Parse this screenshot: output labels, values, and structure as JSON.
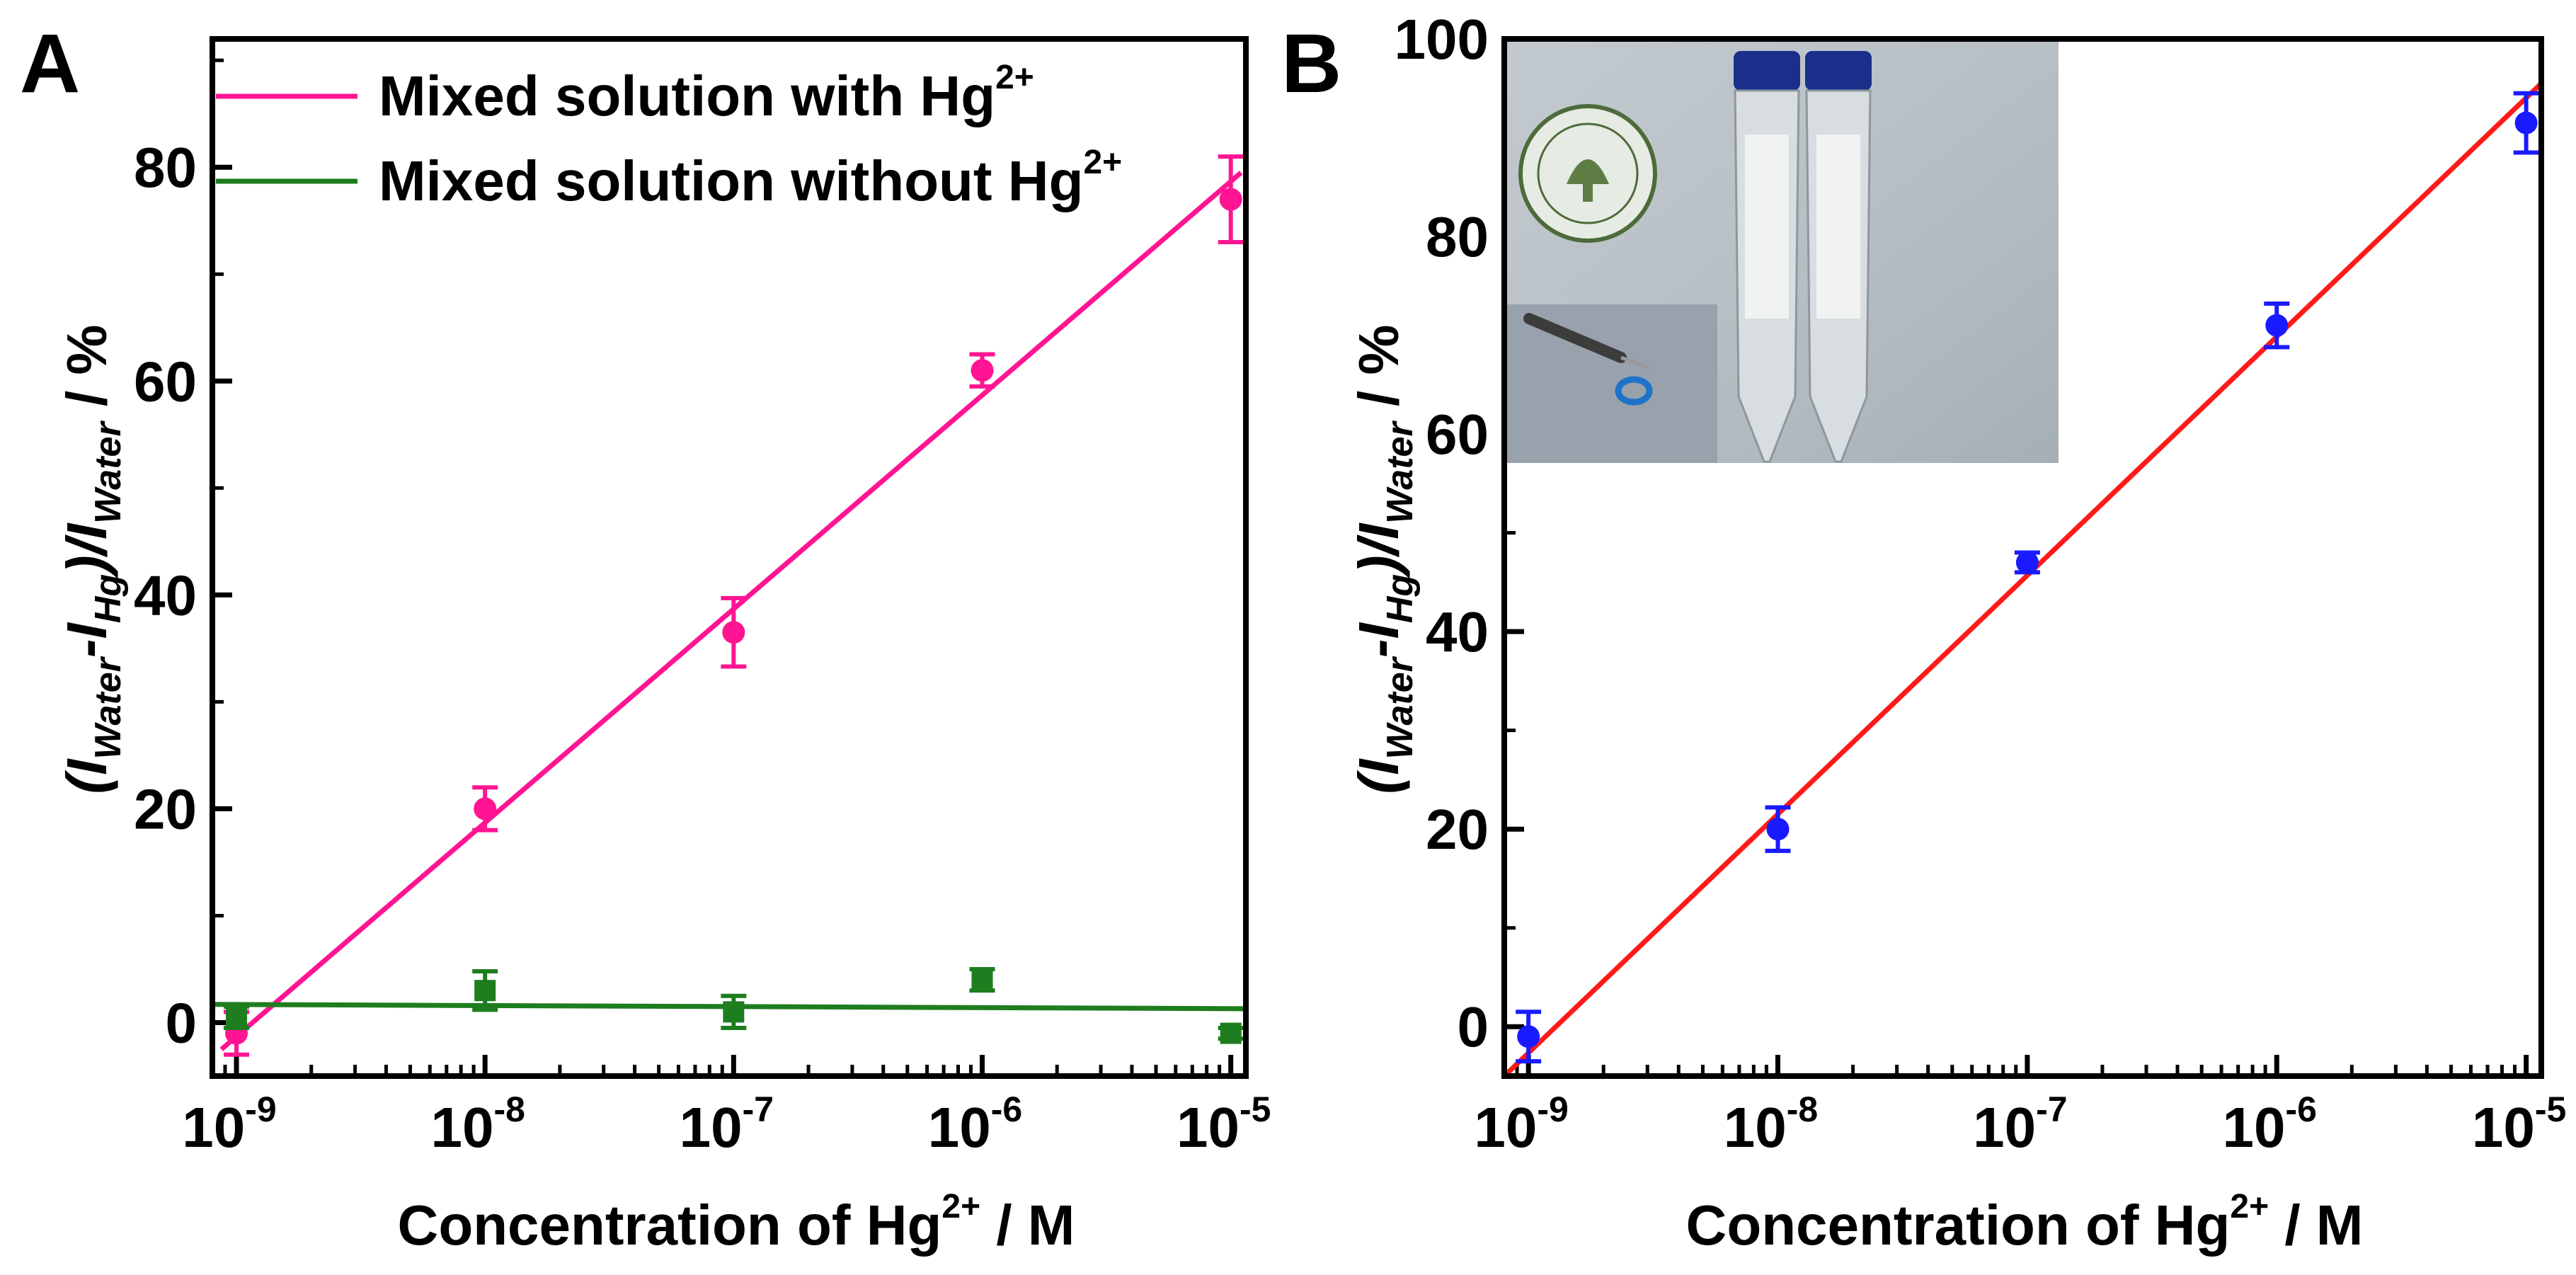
{
  "chart_data": [
    {
      "panel_label": "A",
      "type": "line",
      "x_scale": "log",
      "x_ticks": [
        "1e-9",
        "1e-8",
        "1e-7",
        "1e-6",
        "1e-5"
      ],
      "xlim": [
        8e-10,
        1.15e-05
      ],
      "ylim": [
        -5,
        92
      ],
      "y_ticks": [
        0,
        20,
        40,
        60,
        80
      ],
      "xlabel": "Concentration of Hg²⁺ / M",
      "ylabel": "(IWater-IHg)/IWater / %",
      "legend_placement": "top",
      "series": [
        {
          "name": "Mixed solution with Hg²⁺",
          "color": "#ff1493",
          "marker": "circle",
          "points": [
            {
              "x": "1e-9",
              "y": -1,
              "err": 2
            },
            {
              "x": "1e-8",
              "y": 20,
              "err": 2
            },
            {
              "x": "1e-7",
              "y": 36.5,
              "err": 3.2
            },
            {
              "x": "1e-6",
              "y": 61,
              "err": 1.5
            },
            {
              "x": "1e-5",
              "y": 77,
              "err": 4
            }
          ],
          "fit": {
            "x_from": "8.7e-10",
            "x_to": "1.1e-5",
            "y_from": -2.5,
            "y_to": 79.5
          }
        },
        {
          "name": "Mixed solution without Hg²⁺",
          "color": "#1e7d1e",
          "marker": "square",
          "points": [
            {
              "x": "1e-9",
              "y": 0.5,
              "err": 1
            },
            {
              "x": "1e-8",
              "y": 3,
              "err": 1.8
            },
            {
              "x": "1e-7",
              "y": 1,
              "err": 1.5
            },
            {
              "x": "1e-6",
              "y": 4,
              "err": 1
            },
            {
              "x": "1e-5",
              "y": -1,
              "err": 0.5
            }
          ],
          "fit": {
            "x_from": "8e-10",
            "x_to": "1.15e-5",
            "y_from": 1.7,
            "y_to": 1.3
          }
        }
      ]
    },
    {
      "panel_label": "B",
      "type": "line",
      "x_scale": "log",
      "x_ticks": [
        "1e-9",
        "1e-8",
        "1e-7",
        "1e-6",
        "1e-5"
      ],
      "xlim": [
        8e-10,
        1.15e-05
      ],
      "ylim": [
        -5,
        100
      ],
      "y_ticks": [
        0,
        20,
        40,
        60,
        80,
        100
      ],
      "xlabel": "Concentration of Hg²⁺ / M",
      "ylabel": "(IWater-IHg)/IWater / %",
      "inset": "photo of two capped centrifuge tubes beside a university seal; smaller photo of a syringe dispensing onto a blue ring",
      "series": [
        {
          "color": "#1a1aff",
          "marker": "circle",
          "points": [
            {
              "x": "1e-9",
              "y": -1,
              "err": 2.5
            },
            {
              "x": "1e-8",
              "y": 20,
              "err": 2.2
            },
            {
              "x": "1e-7",
              "y": 47,
              "err": 1
            },
            {
              "x": "1e-6",
              "y": 71,
              "err": 2.2
            },
            {
              "x": "1e-5",
              "y": 91.5,
              "err": 3
            }
          ],
          "fit_color": "#ff1a1a",
          "fit": {
            "x_from": "8e-10",
            "x_to": "1.15e-5",
            "y_from": -5,
            "y_to": 95.5
          }
        }
      ]
    }
  ],
  "text": {
    "panel_a_label": "A",
    "panel_b_label": "B",
    "legend_with": "Mixed solution with Hg",
    "legend_without": "Mixed solution without Hg",
    "legend_sup": "2+",
    "xlabel_main": "Concentration of Hg",
    "xlabel_sup": "2+",
    "xlabel_tail": " / M",
    "ylabel_open": "(I",
    "ylabel_water": "Water",
    "ylabel_minus": "-I",
    "ylabel_hg": "Hg",
    "ylabel_close": ")/I",
    "ylabel_water2": "Water",
    "ylabel_tail": " / %",
    "xtick_base": "10",
    "xtick_exps": [
      "-9",
      "-8",
      "-7",
      "-6",
      "-5"
    ],
    "ytick_labels_a": [
      "0",
      "20",
      "40",
      "60",
      "80"
    ],
    "ytick_labels_b": [
      "0",
      "20",
      "40",
      "60",
      "80",
      "100"
    ]
  }
}
